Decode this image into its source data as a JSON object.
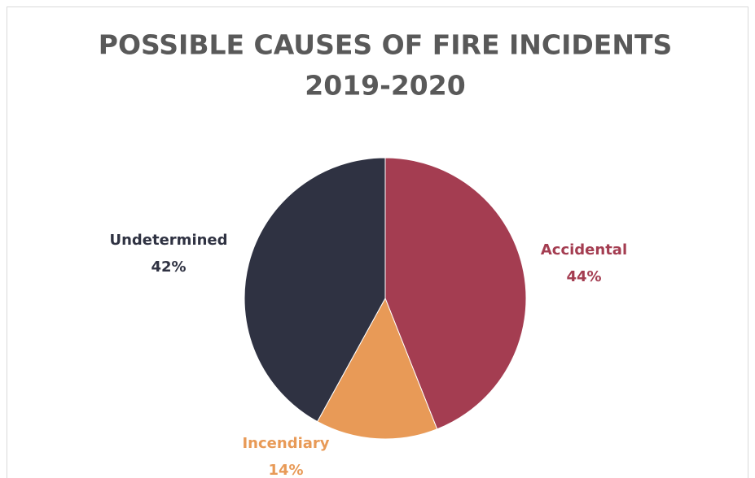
{
  "chart_data": {
    "type": "pie",
    "title": [
      "POSSIBLE CAUSES OF FIRE INCIDENTS",
      "2019-2020"
    ],
    "categories": [
      "Accidental",
      "Incendiary",
      "Undetermined"
    ],
    "values": [
      44,
      14,
      42
    ],
    "value_labels": [
      "44%",
      "14%",
      "42%"
    ],
    "colors": [
      "#a43d51",
      "#e89a57",
      "#2f3242"
    ]
  }
}
